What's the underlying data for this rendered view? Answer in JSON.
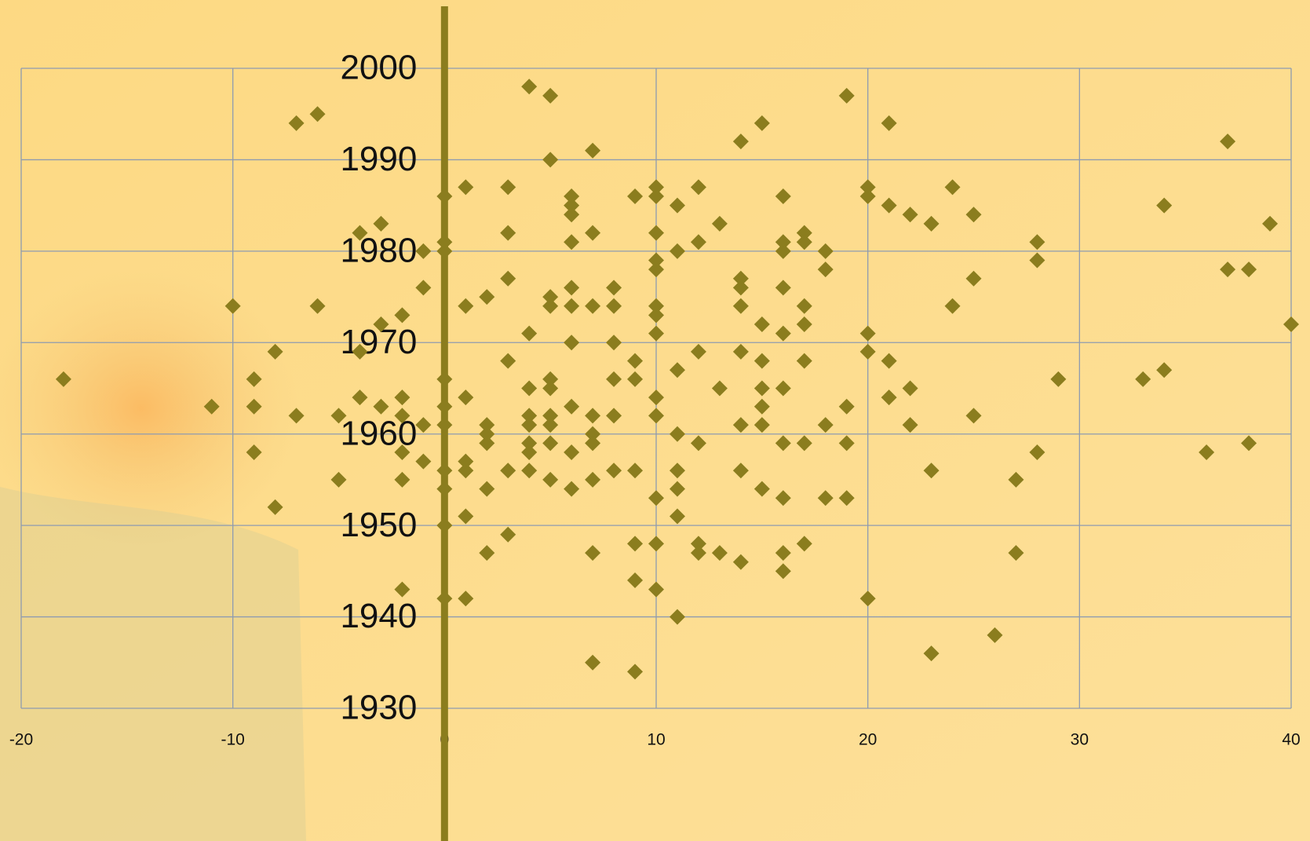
{
  "chart_data": {
    "type": "scatter",
    "color": "#8b7d1e",
    "grid": true,
    "xlim": [
      -20,
      40
    ],
    "ylim": [
      1930,
      2000
    ],
    "xticks": [
      -20,
      -10,
      0,
      10,
      20,
      30,
      40
    ],
    "yticks": [
      1930,
      1940,
      1950,
      1960,
      1970,
      1980,
      1990,
      2000
    ],
    "x": [
      -18,
      -11,
      -10,
      -9,
      -9,
      -9,
      -8,
      -8,
      -7,
      -7,
      -6,
      -6,
      -5,
      -5,
      -4,
      -4,
      -4,
      -3,
      -3,
      -3,
      -2,
      -2,
      -2,
      -2,
      -2,
      -2,
      -1,
      -1,
      -1,
      -1,
      0,
      0,
      0,
      0,
      0,
      0,
      0,
      0,
      0,
      0,
      1,
      1,
      1,
      1,
      1,
      1,
      1,
      2,
      2,
      2,
      2,
      2,
      2,
      3,
      3,
      3,
      3,
      3,
      3,
      4,
      4,
      4,
      4,
      4,
      4,
      4,
      4,
      5,
      5,
      5,
      5,
      5,
      5,
      5,
      5,
      5,
      5,
      6,
      6,
      6,
      6,
      6,
      6,
      6,
      6,
      6,
      6,
      7,
      7,
      7,
      7,
      7,
      7,
      7,
      7,
      7,
      8,
      8,
      8,
      8,
      8,
      8,
      9,
      9,
      9,
      9,
      9,
      9,
      9,
      10,
      10,
      10,
      10,
      10,
      10,
      10,
      10,
      10,
      10,
      10,
      10,
      10,
      11,
      11,
      11,
      11,
      11,
      11,
      11,
      11,
      12,
      12,
      12,
      12,
      12,
      12,
      13,
      13,
      13,
      14,
      14,
      14,
      14,
      14,
      14,
      14,
      14,
      15,
      15,
      15,
      15,
      15,
      15,
      15,
      16,
      16,
      16,
      16,
      16,
      16,
      16,
      16,
      16,
      16,
      17,
      17,
      17,
      17,
      17,
      17,
      17,
      18,
      18,
      18,
      18,
      19,
      19,
      19,
      19,
      20,
      20,
      20,
      20,
      20,
      21,
      21,
      21,
      21,
      22,
      22,
      22,
      23,
      23,
      23,
      24,
      24,
      25,
      25,
      25,
      26,
      27,
      27,
      28,
      28,
      28,
      29,
      33,
      34,
      34,
      36,
      37,
      37,
      38,
      38,
      39,
      40
    ],
    "y": [
      1966,
      1963,
      1974,
      1966,
      1963,
      1958,
      1969,
      1952,
      1994,
      1962,
      1995,
      1974,
      1962,
      1955,
      1982,
      1969,
      1964,
      1983,
      1972,
      1963,
      1973,
      1964,
      1962,
      1958,
      1955,
      1943,
      1980,
      1976,
      1961,
      1957,
      1986,
      1981,
      1980,
      1966,
      1963,
      1961,
      1956,
      1954,
      1950,
      1942,
      1987,
      1974,
      1964,
      1957,
      1956,
      1951,
      1942,
      1975,
      1961,
      1960,
      1959,
      1954,
      1947,
      1987,
      1982,
      1977,
      1968,
      1956,
      1949,
      1998,
      1971,
      1965,
      1962,
      1961,
      1959,
      1958,
      1956,
      1997,
      1990,
      1975,
      1974,
      1966,
      1965,
      1962,
      1961,
      1959,
      1955,
      1986,
      1985,
      1984,
      1981,
      1976,
      1974,
      1970,
      1963,
      1958,
      1954,
      1991,
      1982,
      1974,
      1962,
      1960,
      1959,
      1955,
      1947,
      1935,
      1976,
      1974,
      1970,
      1966,
      1962,
      1956,
      1986,
      1968,
      1966,
      1956,
      1948,
      1944,
      1934,
      1987,
      1986,
      1982,
      1979,
      1978,
      1974,
      1973,
      1971,
      1964,
      1962,
      1953,
      1948,
      1943,
      1985,
      1980,
      1967,
      1960,
      1956,
      1954,
      1951,
      1940,
      1987,
      1981,
      1969,
      1959,
      1948,
      1947,
      1983,
      1965,
      1947,
      1992,
      1977,
      1976,
      1974,
      1969,
      1961,
      1956,
      1946,
      1994,
      1972,
      1968,
      1965,
      1963,
      1961,
      1954,
      1986,
      1981,
      1980,
      1976,
      1971,
      1965,
      1959,
      1953,
      1947,
      1945,
      1982,
      1981,
      1974,
      1972,
      1968,
      1959,
      1948,
      1980,
      1978,
      1961,
      1953,
      1997,
      1963,
      1959,
      1953,
      1987,
      1986,
      1971,
      1969,
      1942,
      1994,
      1985,
      1968,
      1964,
      1984,
      1965,
      1961,
      1983,
      1956,
      1936,
      1987,
      1974,
      1984,
      1977,
      1962,
      1938,
      1955,
      1947,
      1981,
      1979,
      1958,
      1966,
      1966,
      1985,
      1967,
      1958,
      1992,
      1978,
      1978,
      1959,
      1983,
      1972
    ]
  }
}
